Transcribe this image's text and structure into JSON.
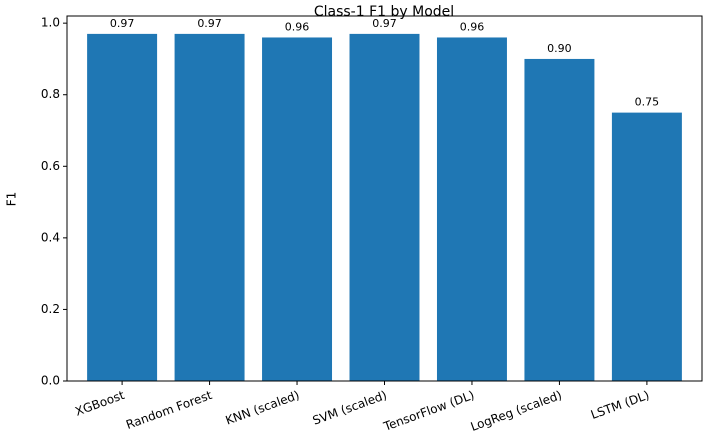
{
  "chart_data": {
    "type": "bar",
    "title": "Class-1 F1 by Model",
    "y_label": "F1",
    "categories": [
      "XGBoost",
      "Random Forest",
      "KNN (scaled)",
      "SVM (scaled)",
      "TensorFlow (DL)",
      "LogReg (scaled)",
      "LSTM (DL)"
    ],
    "values": [
      0.97,
      0.97,
      0.96,
      0.97,
      0.96,
      0.9,
      0.75
    ],
    "value_labels": [
      "0.97",
      "0.97",
      "0.96",
      "0.97",
      "0.96",
      "0.90",
      "0.75"
    ],
    "color": "#1f77b4",
    "ylim": [
      0,
      1.02
    ],
    "yticks": [
      {
        "value": 0,
        "label": "0.0"
      },
      0.2,
      0.4,
      0.6,
      0.8,
      {
        "value": 1,
        "label": "1.0"
      }
    ],
    "grid": false
  }
}
